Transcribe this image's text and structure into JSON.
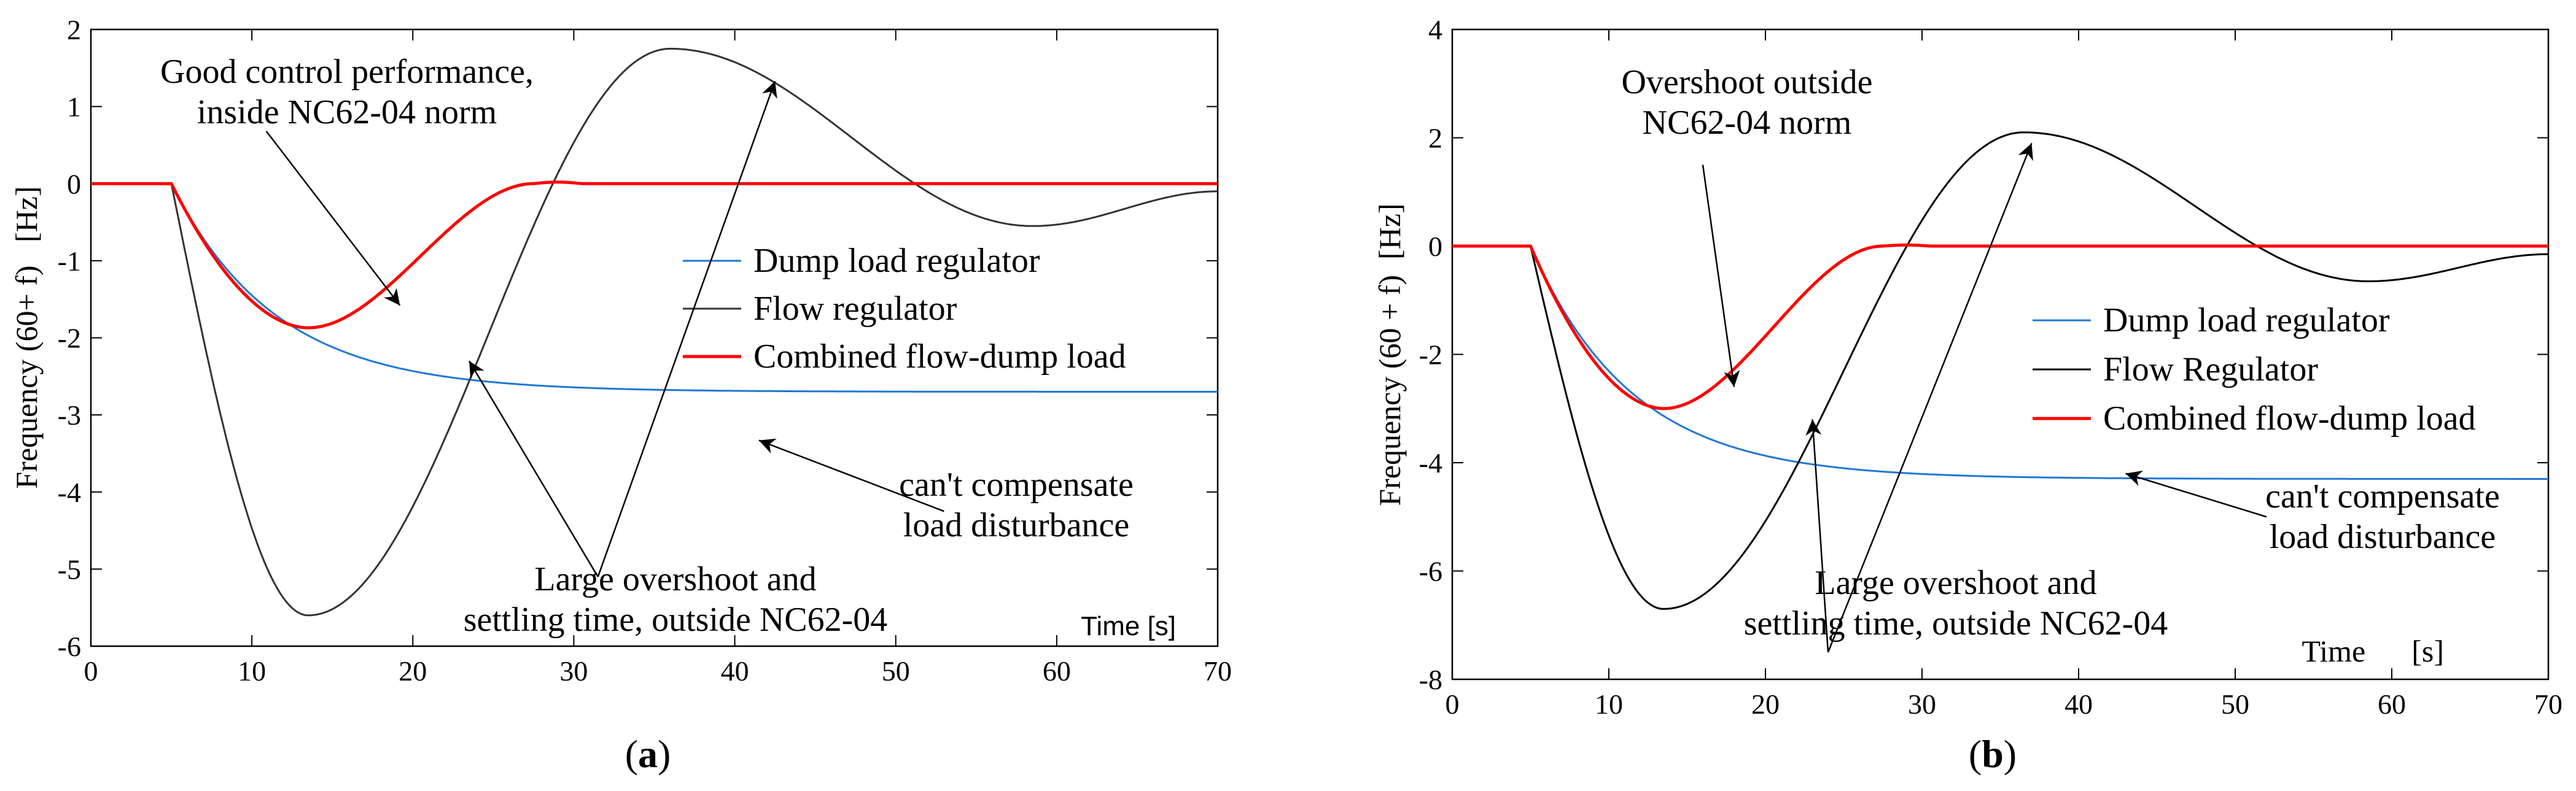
{
  "chart_data": [
    {
      "type": "line",
      "panel_label": "a",
      "xlabel": "Time [s]",
      "ylabel": "Frequency (60+ f)   [Hz]",
      "xlim": [
        0,
        70
      ],
      "ylim": [
        -6,
        2
      ],
      "xticks": [
        "0",
        "10",
        "20",
        "30",
        "40",
        "50",
        "60",
        "70"
      ],
      "yticks": [
        "2",
        "1",
        "0",
        "-1",
        "-2",
        "-3",
        "-4",
        "-5",
        "-6"
      ],
      "grid": false,
      "legend_position": "center-right",
      "series": [
        {
          "name": "Dump load regulator",
          "color": "#1f77d4",
          "kind": "dump",
          "final": -2.7
        },
        {
          "name": "Flow regulator",
          "color": "#333333",
          "kind": "flow",
          "min": -5.6,
          "min_t": 13.5,
          "max": 1.75,
          "max_t": 36,
          "min2": -0.55,
          "min2_t": 58.5,
          "end": -0.1
        },
        {
          "name": "Combined flow-dump load",
          "color": "#ff0000",
          "kind": "combined",
          "min": -1.87,
          "min_t": 13.5,
          "recover_t": 27.5
        }
      ],
      "annotations": [
        {
          "lines": [
            "Good control performance,",
            "inside NC62-04 norm"
          ]
        },
        {
          "lines": [
            "can't compensate",
            "load disturbance"
          ]
        },
        {
          "lines": [
            "Large overshoot and",
            "settling time, outside NC62-04"
          ]
        }
      ],
      "arrows": [
        {
          "from": [
            10.9,
            0.68
          ],
          "to": [
            19.2,
            -1.58
          ]
        },
        {
          "from": [
            53,
            -4.25
          ],
          "to": [
            41.5,
            -3.33
          ]
        },
        {
          "from": [
            31.5,
            -5.1
          ],
          "to": [
            23.5,
            -2.3
          ]
        },
        {
          "from": [
            31.5,
            -5.1
          ],
          "to": [
            42.5,
            1.33
          ]
        }
      ]
    },
    {
      "type": "line",
      "panel_label": "b",
      "xlabel": "Time      [s]",
      "ylabel": "Frequency (60 + f)  [Hz]",
      "xlim": [
        0,
        70
      ],
      "ylim": [
        -8,
        4
      ],
      "xticks": [
        "0",
        "10",
        "20",
        "30",
        "40",
        "50",
        "60",
        "70"
      ],
      "yticks": [
        "4",
        "2",
        "0",
        "-2",
        "-4",
        "-6",
        "-8"
      ],
      "grid": false,
      "legend_position": "center-right",
      "series": [
        {
          "name": "Dump load regulator",
          "color": "#1f77d4",
          "kind": "dump",
          "final": -4.3
        },
        {
          "name": "Flow Regulator",
          "color": "#000000",
          "kind": "flow",
          "min": -6.7,
          "min_t": 13.5,
          "max": 2.1,
          "max_t": 36.5,
          "min2": -0.65,
          "min2_t": 58.5,
          "end": -0.15
        },
        {
          "name": "Combined flow-dump load",
          "color": "#ff0000",
          "kind": "combined",
          "min": -3.0,
          "min_t": 13.5,
          "recover_t": 27.5
        }
      ],
      "annotations": [
        {
          "lines": [
            "Overshoot outside",
            "NC62-04 norm"
          ]
        },
        {
          "lines": [
            "can't compensate",
            "load disturbance"
          ]
        },
        {
          "lines": [
            "Large overshoot and",
            "settling time, outside NC62-04"
          ]
        }
      ],
      "arrows": [
        {
          "from": [
            16,
            1.5
          ],
          "to": [
            18,
            -2.6
          ]
        },
        {
          "from": [
            52,
            -5.0
          ],
          "to": [
            43,
            -4.2
          ]
        },
        {
          "from": [
            24,
            -7.5
          ],
          "to": [
            23,
            -3.2
          ]
        },
        {
          "from": [
            24,
            -7.5
          ],
          "to": [
            37,
            1.9
          ]
        }
      ]
    }
  ]
}
